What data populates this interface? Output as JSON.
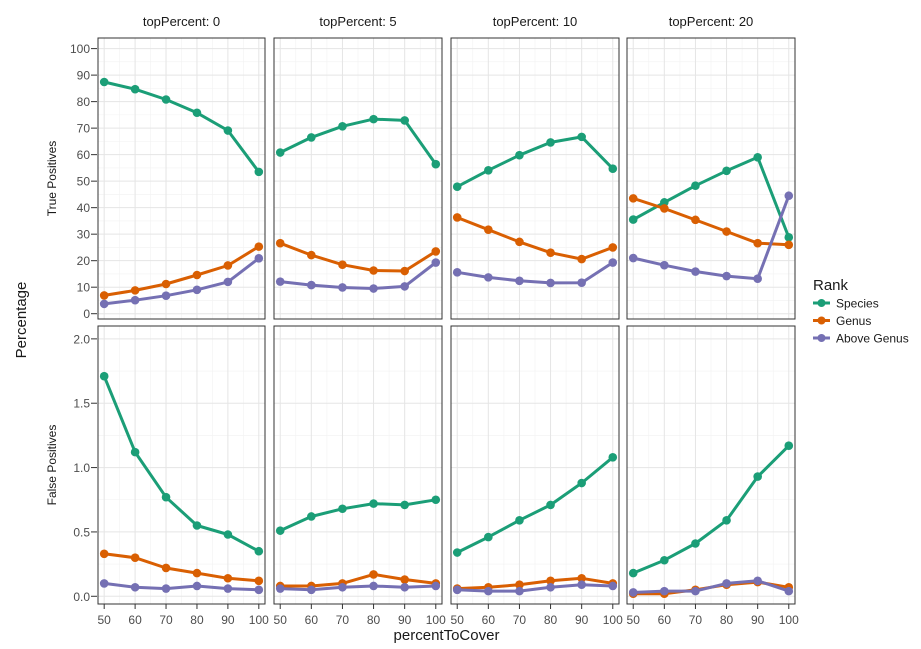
{
  "chart_data": {
    "type": "line",
    "facet_col_label_prefix": "topPercent: ",
    "facet_cols": [
      "0",
      "5",
      "10",
      "20"
    ],
    "xlabel": "percentToCover",
    "ylabel": "Percentage",
    "x": [
      50,
      60,
      70,
      80,
      90,
      100
    ],
    "rows": [
      {
        "label": "True Positives",
        "ylim": [
          -2,
          104
        ],
        "yticks": [
          0,
          10,
          20,
          30,
          40,
          50,
          60,
          70,
          80,
          90,
          100
        ],
        "panels": [
          {
            "series": [
              {
                "name": "Species",
                "values": [
                  87.4,
                  84.7,
                  80.8,
                  75.8,
                  69.1,
                  53.5
                ]
              },
              {
                "name": "Genus",
                "values": [
                  6.9,
                  8.8,
                  11.2,
                  14.6,
                  18.2,
                  25.3
                ]
              },
              {
                "name": "Above Genus",
                "values": [
                  3.7,
                  5.1,
                  6.8,
                  9.0,
                  12.0,
                  20.9
                ]
              }
            ]
          },
          {
            "series": [
              {
                "name": "Species",
                "values": [
                  60.8,
                  66.5,
                  70.7,
                  73.4,
                  72.9,
                  56.4
                ]
              },
              {
                "name": "Genus",
                "values": [
                  26.6,
                  22.1,
                  18.5,
                  16.3,
                  16.1,
                  23.5
                ]
              },
              {
                "name": "Above Genus",
                "values": [
                  12.1,
                  10.8,
                  9.9,
                  9.5,
                  10.3,
                  19.3
                ]
              }
            ]
          },
          {
            "series": [
              {
                "name": "Species",
                "values": [
                  47.9,
                  54.1,
                  59.8,
                  64.6,
                  66.7,
                  54.7
                ]
              },
              {
                "name": "Genus",
                "values": [
                  36.3,
                  31.7,
                  27.1,
                  23.0,
                  20.6,
                  25.0
                ]
              },
              {
                "name": "Above Genus",
                "values": [
                  15.6,
                  13.7,
                  12.4,
                  11.6,
                  11.7,
                  19.3
                ]
              }
            ]
          },
          {
            "series": [
              {
                "name": "Species",
                "values": [
                  35.5,
                  42.0,
                  48.3,
                  53.9,
                  59.0,
                  28.8
                ]
              },
              {
                "name": "Genus",
                "values": [
                  43.5,
                  39.7,
                  35.4,
                  31.0,
                  26.6,
                  26.0
                ]
              },
              {
                "name": "Above Genus",
                "values": [
                  21.0,
                  18.3,
                  15.9,
                  14.2,
                  13.2,
                  44.5
                ]
              }
            ]
          }
        ]
      },
      {
        "label": "False Positives",
        "ylim": [
          -0.06,
          2.1
        ],
        "yticks": [
          0.0,
          0.5,
          1.0,
          1.5,
          2.0
        ],
        "ytick_labels": [
          "0.0",
          "0.5",
          "1.0",
          "1.5",
          "2.0"
        ],
        "panels": [
          {
            "series": [
              {
                "name": "Species",
                "values": [
                  1.71,
                  1.12,
                  0.77,
                  0.55,
                  0.48,
                  0.35
                ]
              },
              {
                "name": "Genus",
                "values": [
                  0.33,
                  0.3,
                  0.22,
                  0.18,
                  0.14,
                  0.12
                ]
              },
              {
                "name": "Above Genus",
                "values": [
                  0.1,
                  0.07,
                  0.06,
                  0.08,
                  0.06,
                  0.05
                ]
              }
            ]
          },
          {
            "series": [
              {
                "name": "Species",
                "values": [
                  0.51,
                  0.62,
                  0.68,
                  0.72,
                  0.71,
                  0.75
                ]
              },
              {
                "name": "Genus",
                "values": [
                  0.08,
                  0.08,
                  0.1,
                  0.17,
                  0.13,
                  0.1
                ]
              },
              {
                "name": "Above Genus",
                "values": [
                  0.06,
                  0.05,
                  0.07,
                  0.08,
                  0.07,
                  0.08
                ]
              }
            ]
          },
          {
            "series": [
              {
                "name": "Species",
                "values": [
                  0.34,
                  0.46,
                  0.59,
                  0.71,
                  0.88,
                  1.08
                ]
              },
              {
                "name": "Genus",
                "values": [
                  0.06,
                  0.07,
                  0.09,
                  0.12,
                  0.14,
                  0.1
                ]
              },
              {
                "name": "Above Genus",
                "values": [
                  0.05,
                  0.04,
                  0.04,
                  0.07,
                  0.09,
                  0.08
                ]
              }
            ]
          },
          {
            "series": [
              {
                "name": "Species",
                "values": [
                  0.18,
                  0.28,
                  0.41,
                  0.59,
                  0.93,
                  1.17
                ]
              },
              {
                "name": "Genus",
                "values": [
                  0.02,
                  0.02,
                  0.05,
                  0.09,
                  0.11,
                  0.07
                ]
              },
              {
                "name": "Above Genus",
                "values": [
                  0.03,
                  0.04,
                  0.04,
                  0.1,
                  0.12,
                  0.04
                ]
              }
            ]
          }
        ]
      }
    ],
    "legend": {
      "title": "Rank",
      "placement": "right",
      "entries": [
        "Species",
        "Genus",
        "Above Genus"
      ]
    },
    "colors": {
      "Species": "#1b9e77",
      "Genus": "#d95f02",
      "Above Genus": "#7570b3",
      "panel_border": "#333333",
      "grid_major": "#e5e5e5",
      "grid_minor": "#f2f2f2",
      "text": "#4d4d4d"
    },
    "grid": true
  }
}
